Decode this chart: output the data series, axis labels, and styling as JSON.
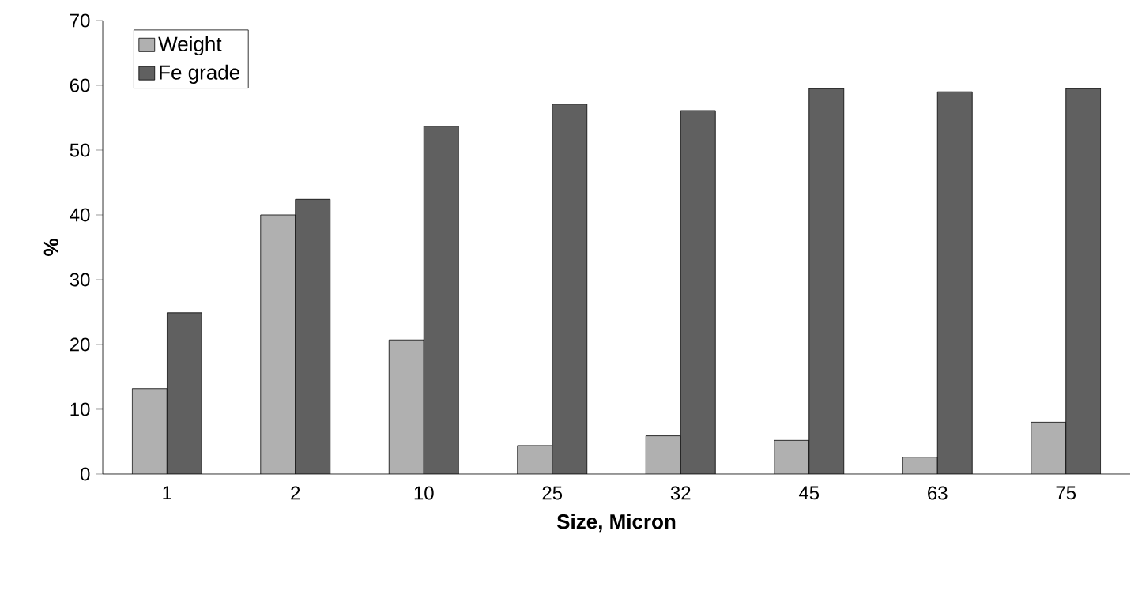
{
  "chart_data": {
    "type": "bar",
    "xlabel": "Size, Micron",
    "ylabel": "%",
    "categories": [
      "1",
      "2",
      "10",
      "25",
      "32",
      "45",
      "63",
      "75"
    ],
    "series": [
      {
        "name": "Weight",
        "color": "#b0b0b0",
        "values": [
          13.2,
          40,
          20.7,
          4.4,
          5.9,
          5.2,
          2.6,
          8
        ]
      },
      {
        "name": "Fe grade",
        "color": "#606060",
        "values": [
          24.9,
          42.4,
          53.7,
          57.1,
          56.1,
          59.5,
          59,
          59.5
        ]
      }
    ],
    "ylim": [
      0,
      70
    ],
    "yticks": [
      0,
      10,
      20,
      30,
      40,
      50,
      60,
      70
    ],
    "legend": "top left",
    "grid": false
  }
}
